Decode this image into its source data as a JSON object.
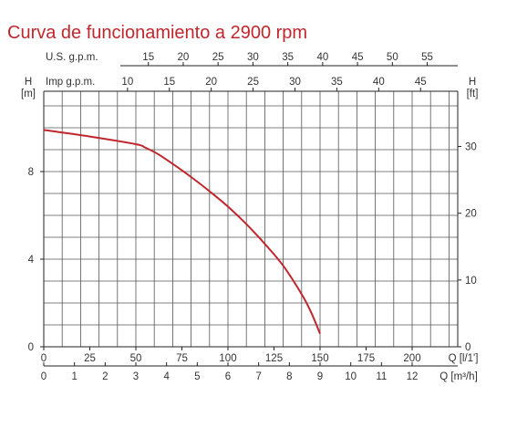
{
  "title": "Curva de funcionamiento a 2900 rpm",
  "colors": {
    "title": "#c0272d",
    "curve": "#c0272d",
    "grid": "#555555",
    "text": "#333333"
  },
  "chart_data": {
    "type": "line",
    "title": "Curva de funcionamiento a 2900 rpm",
    "grid": true,
    "x": {
      "label": "Q [l/1']",
      "range": [
        0,
        222
      ],
      "ticks": [
        0,
        25,
        50,
        75,
        100,
        125,
        150,
        175,
        200
      ],
      "tick_labels": [
        "0",
        "25",
        "50",
        "75",
        "100",
        "125",
        "150",
        "175",
        "200"
      ]
    },
    "x_secondary_bottom": {
      "label": "Q [m³/h]",
      "ticks": [
        0,
        1,
        2,
        3,
        4,
        5,
        6,
        7,
        8,
        9,
        10,
        11,
        12
      ],
      "tick_labels": [
        "0",
        "1",
        "2",
        "3",
        "4",
        "5",
        "6",
        "7",
        "8",
        "9",
        "10",
        "11",
        "12"
      ]
    },
    "x_top_imp": {
      "label": "Imp g.p.m.",
      "ticks": [
        10,
        15,
        20,
        25,
        30,
        35,
        40,
        45
      ],
      "tick_labels": [
        "10",
        "15",
        "20",
        "25",
        "30",
        "35",
        "40",
        "45"
      ]
    },
    "x_top_us": {
      "label": "U.S. g.p.m.",
      "ticks": [
        15,
        20,
        25,
        30,
        35,
        40,
        45,
        50,
        55
      ],
      "tick_labels": [
        "15",
        "20",
        "25",
        "30",
        "35",
        "40",
        "45",
        "50",
        "55"
      ]
    },
    "y": {
      "label": "H",
      "unit": "[m]",
      "range": [
        0,
        13.2
      ],
      "ticks": [
        0,
        4,
        8
      ],
      "tick_labels": [
        "0",
        "4",
        "8"
      ]
    },
    "y_right": {
      "label": "H",
      "unit": "[ft]",
      "ticks": [
        0,
        10,
        20,
        30
      ],
      "tick_labels": [
        "0",
        "10",
        "20",
        "30"
      ]
    },
    "series": [
      {
        "x": [
          0,
          25,
          50,
          55,
          62,
          70,
          80,
          90,
          100,
          110,
          120,
          130,
          140,
          145,
          150
        ],
        "y": [
          9.9,
          9.6,
          9.25,
          9.1,
          8.8,
          8.35,
          7.75,
          7.1,
          6.4,
          5.6,
          4.7,
          3.7,
          2.4,
          1.6,
          0.6
        ]
      }
    ]
  }
}
